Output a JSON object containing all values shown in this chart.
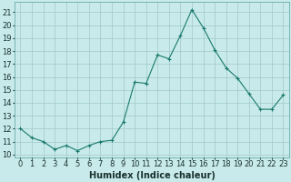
{
  "x": [
    0,
    1,
    2,
    3,
    4,
    5,
    6,
    7,
    8,
    9,
    10,
    11,
    12,
    13,
    14,
    15,
    16,
    17,
    18,
    19,
    20,
    21,
    22,
    23
  ],
  "y": [
    12.0,
    11.3,
    11.0,
    10.4,
    10.7,
    10.3,
    10.7,
    11.0,
    11.1,
    12.5,
    15.6,
    15.5,
    17.7,
    17.4,
    19.2,
    21.2,
    19.8,
    18.1,
    16.7,
    15.9,
    14.7,
    13.5,
    13.5,
    14.6
  ],
  "line_color": "#1a7a6e",
  "marker": "+",
  "bg_color": "#c8eaea",
  "grid_color": "#a0c8c8",
  "xlabel": "Humidex (Indice chaleur)",
  "ylabel_ticks": [
    10,
    11,
    12,
    13,
    14,
    15,
    16,
    17,
    18,
    19,
    20,
    21
  ],
  "xlim": [
    -0.5,
    23.5
  ],
  "ylim": [
    9.8,
    21.8
  ],
  "xlabel_fontsize": 7,
  "tick_fontsize": 6,
  "ytick_fontsize": 6
}
